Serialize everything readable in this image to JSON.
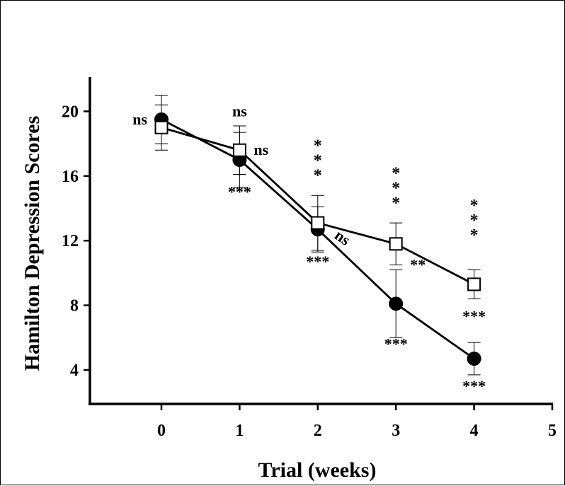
{
  "chart_data": {
    "type": "line",
    "title": "",
    "xlabel": "Trial (weeks)",
    "ylabel": "Hamilton Depression Scores",
    "xlim": [
      -1,
      5
    ],
    "ylim": [
      2,
      22
    ],
    "xticks": [
      0,
      1,
      2,
      3,
      4,
      5
    ],
    "yticks": [
      4,
      8,
      12,
      16,
      20
    ],
    "grid": false,
    "legend": "none",
    "series": [
      {
        "marker": "filled-circle",
        "color": "#000000",
        "x": [
          0,
          1,
          2,
          3,
          4
        ],
        "y": [
          19.5,
          17.0,
          12.7,
          8.1,
          4.7
        ],
        "err": [
          1.5,
          1.7,
          1.4,
          2.1,
          1.0
        ]
      },
      {
        "marker": "open-square",
        "color": "#000000",
        "x": [
          0,
          1,
          2,
          3,
          4
        ],
        "y": [
          19.0,
          17.6,
          13.1,
          11.8,
          9.3
        ],
        "err": [
          1.4,
          1.5,
          1.7,
          1.3,
          0.9
        ]
      }
    ],
    "annotations": [
      {
        "text": "ns",
        "x": 0,
        "y": 19.5,
        "pos": "left"
      },
      {
        "text": "ns",
        "x": 1,
        "y": 20.0,
        "pos": "above"
      },
      {
        "text": "ns",
        "x": 1,
        "y": 17.6,
        "pos": "right"
      },
      {
        "text": "***",
        "x": 1,
        "y": 15.0,
        "pos": "below"
      },
      {
        "text": "***",
        "x": 2,
        "y": 15.7,
        "pos": "above",
        "vertical": true
      },
      {
        "text": "ns",
        "x": 2,
        "y": 12.0,
        "pos": "right",
        "rotated": true
      },
      {
        "text": "***",
        "x": 2,
        "y": 10.7,
        "pos": "below"
      },
      {
        "text": "***",
        "x": 3,
        "y": 14.0,
        "pos": "above",
        "vertical": true
      },
      {
        "text": "**",
        "x": 3,
        "y": 10.5,
        "pos": "right"
      },
      {
        "text": "***",
        "x": 3,
        "y": 5.6,
        "pos": "below"
      },
      {
        "text": "***",
        "x": 4,
        "y": 12.0,
        "pos": "above",
        "vertical": true
      },
      {
        "text": "***",
        "x": 4,
        "y": 7.3,
        "pos": "above"
      },
      {
        "text": "***",
        "x": 4,
        "y": 3.0,
        "pos": "below"
      }
    ]
  }
}
